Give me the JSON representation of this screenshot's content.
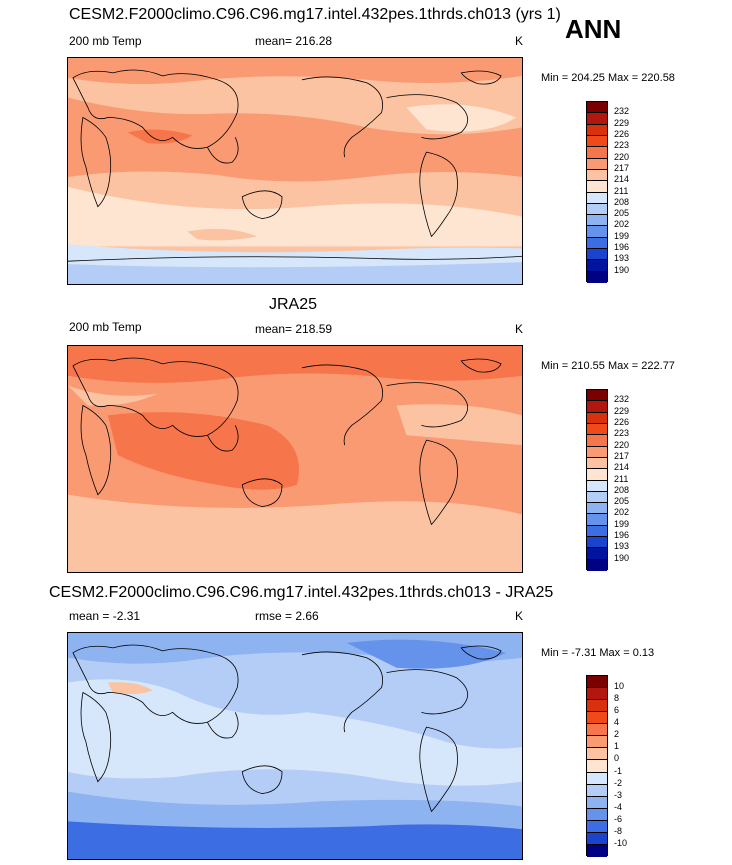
{
  "season": "ANN",
  "panels": [
    {
      "title": "CESM2.F2000climo.C96.C96.mg17.intel.432pes.1thrds.ch013 (yrs 1)",
      "left_label": "200 mb Temp",
      "mean_label": "mean= 216.28",
      "units": "K",
      "minmax": "Min = 204.25 Max = 220.58",
      "colorbar_labels": [
        "232",
        "229",
        "226",
        "223",
        "220",
        "217",
        "214",
        "211",
        "208",
        "205",
        "202",
        "199",
        "196",
        "193",
        "190"
      ],
      "colors": [
        "#7a0000",
        "#b3160e",
        "#d9300e",
        "#f04a1a",
        "#f7754a",
        "#f99a72",
        "#fbc3a2",
        "#fde5d2",
        "#d6e6fb",
        "#b3cdf7",
        "#8db3f1",
        "#6592ea",
        "#3c6de3",
        "#1a43cf",
        "#0014a0",
        "#000085"
      ]
    },
    {
      "title": "JRA25",
      "left_label": "200 mb Temp",
      "mean_label": "mean= 218.59",
      "units": "K",
      "minmax": "Min = 210.55 Max = 222.77",
      "colorbar_labels": [
        "232",
        "229",
        "226",
        "223",
        "220",
        "217",
        "214",
        "211",
        "208",
        "205",
        "202",
        "199",
        "196",
        "193",
        "190"
      ],
      "colors": [
        "#7a0000",
        "#b3160e",
        "#d9300e",
        "#f04a1a",
        "#f7754a",
        "#f99a72",
        "#fbc3a2",
        "#fde5d2",
        "#d6e6fb",
        "#b3cdf7",
        "#8db3f1",
        "#6592ea",
        "#3c6de3",
        "#1a43cf",
        "#0014a0",
        "#000085"
      ]
    },
    {
      "title": "CESM2.F2000climo.C96.C96.mg17.intel.432pes.1thrds.ch013 - JRA25",
      "mean_label": "mean =  -2.31",
      "rmse_label": "rmse =   2.66",
      "units": "K",
      "minmax": "Min =  -7.31 Max =   0.13",
      "colorbar_labels": [
        "10",
        "8",
        "6",
        "4",
        "2",
        "1",
        "0",
        "-1",
        "-2",
        "-3",
        "-4",
        "-6",
        "-8",
        "-10"
      ],
      "colors": [
        "#7a0000",
        "#b3160e",
        "#d9300e",
        "#f04a1a",
        "#f7754a",
        "#f99a72",
        "#fbc3a2",
        "#fde5d2",
        "#d6e6fb",
        "#b3cdf7",
        "#8db3f1",
        "#6592ea",
        "#3c6de3",
        "#1a43cf",
        "#000085"
      ]
    }
  ]
}
